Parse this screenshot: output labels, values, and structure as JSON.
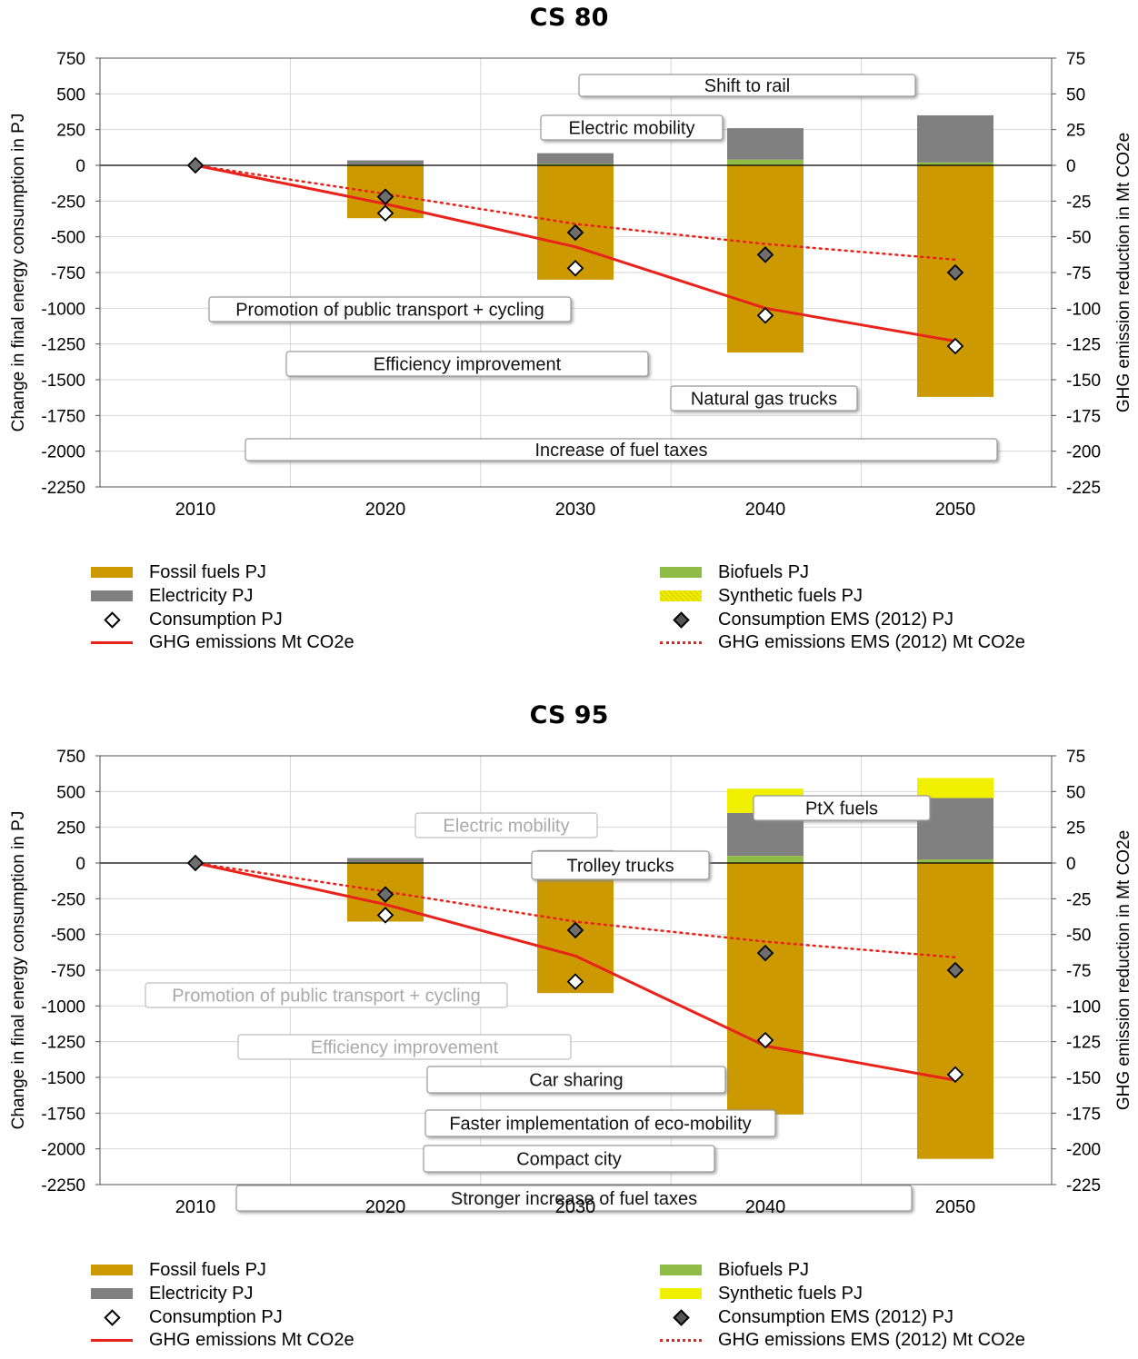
{
  "chart_data": [
    {
      "type": "bar",
      "title": "CS 80",
      "ylabel": "Change in final energy consumption in PJ",
      "y2label": "GHG emission reduction in Mt CO2e",
      "categories": [
        "2010",
        "2020",
        "2030",
        "2040",
        "2050"
      ],
      "ylim": [
        -2250,
        750
      ],
      "yticks": [
        750,
        500,
        250,
        0,
        -250,
        -500,
        -750,
        -1000,
        -1250,
        -1500,
        -1750,
        -2000,
        -2250
      ],
      "y2lim": [
        -225,
        75
      ],
      "y2ticks": [
        75,
        50,
        25,
        0,
        -25,
        -50,
        -75,
        -100,
        -125,
        -150,
        -175,
        -200,
        -225
      ],
      "grid": true,
      "series": [
        {
          "name": "Fossil fuels PJ",
          "kind": "bar",
          "color": "#cc9900",
          "values": [
            0,
            -370,
            -800,
            -1310,
            -1620
          ]
        },
        {
          "name": "Biofuels  PJ",
          "kind": "bar",
          "color": "#8fbc47",
          "values": [
            0,
            5,
            10,
            40,
            20
          ]
        },
        {
          "name": "Electricity  PJ",
          "kind": "bar",
          "color": "#808080",
          "values": [
            0,
            30,
            75,
            220,
            330
          ]
        },
        {
          "name": "Synthetic fuels  PJ",
          "kind": "bar",
          "color": "#f0f000",
          "values": [
            0,
            0,
            0,
            0,
            0
          ]
        },
        {
          "name": "Consumption  PJ",
          "kind": "marker",
          "marker": "open-diamond",
          "values": [
            0,
            -335,
            -720,
            -1050,
            -1265
          ]
        },
        {
          "name": "Consumption EMS (2012)  PJ",
          "kind": "marker",
          "marker": "filled-diamond",
          "values": [
            0,
            -220,
            -470,
            -625,
            -750
          ]
        },
        {
          "name": "GHG emissions Mt CO2e",
          "kind": "line",
          "style": "solid",
          "color": "#e8231c",
          "axis": "right",
          "values": [
            0,
            -27,
            -57,
            -100,
            -123
          ]
        },
        {
          "name": "GHG emissions EMS (2012) Mt CO2e",
          "kind": "line",
          "style": "dotted",
          "color": "#e8231c",
          "axis": "right",
          "values": [
            0,
            -20,
            -41,
            -55,
            -66
          ]
        }
      ],
      "annotations": [
        {
          "text": "Shift to rail",
          "faded": false
        },
        {
          "text": "Electric mobility",
          "faded": false
        },
        {
          "text": "Promotion of public transport + cycling",
          "faded": false
        },
        {
          "text": "Efficiency improvement",
          "faded": false
        },
        {
          "text": "Natural gas trucks",
          "faded": false
        },
        {
          "text": "Increase of fuel taxes",
          "faded": false
        }
      ]
    },
    {
      "type": "bar",
      "title": "CS 95",
      "ylabel": "Change in final energy consumption in PJ",
      "y2label": "GHG emission reduction in Mt CO2e",
      "categories": [
        "2010",
        "2020",
        "2030",
        "2040",
        "2050"
      ],
      "ylim": [
        -2250,
        750
      ],
      "yticks": [
        750,
        500,
        250,
        0,
        -250,
        -500,
        -750,
        -1000,
        -1250,
        -1500,
        -1750,
        -2000,
        -2250
      ],
      "y2lim": [
        -225,
        75
      ],
      "y2ticks": [
        75,
        50,
        25,
        0,
        -25,
        -50,
        -75,
        -100,
        -125,
        -150,
        -175,
        -200,
        -225
      ],
      "grid": true,
      "series": [
        {
          "name": "Fossil fuels PJ",
          "kind": "bar",
          "color": "#cc9900",
          "values": [
            0,
            -410,
            -910,
            -1760,
            -2070
          ]
        },
        {
          "name": "Biofuels  PJ",
          "kind": "bar",
          "color": "#8fbc47",
          "values": [
            0,
            5,
            10,
            50,
            25
          ]
        },
        {
          "name": "Electricity  PJ",
          "kind": "bar",
          "color": "#808080",
          "values": [
            0,
            30,
            80,
            300,
            430
          ]
        },
        {
          "name": "Synthetic fuels  PJ",
          "kind": "bar",
          "color": "#f0f000",
          "values": [
            0,
            0,
            0,
            170,
            140
          ]
        },
        {
          "name": "Consumption  PJ",
          "kind": "marker",
          "marker": "open-diamond",
          "values": [
            0,
            -365,
            -830,
            -1240,
            -1480
          ]
        },
        {
          "name": "Consumption EMS (2012)  PJ",
          "kind": "marker",
          "marker": "filled-diamond",
          "values": [
            0,
            -220,
            -470,
            -630,
            -750
          ]
        },
        {
          "name": "GHG emissions Mt CO2e",
          "kind": "line",
          "style": "solid",
          "color": "#e8231c",
          "axis": "right",
          "values": [
            0,
            -29,
            -65,
            -128,
            -152
          ]
        },
        {
          "name": "GHG emissions EMS (2012) Mt CO2e",
          "kind": "line",
          "style": "dotted",
          "color": "#e8231c",
          "axis": "right",
          "values": [
            0,
            -20,
            -41,
            -55,
            -66
          ]
        }
      ],
      "annotations": [
        {
          "text": "PtX fuels",
          "faded": false
        },
        {
          "text": "Electric mobility",
          "faded": true
        },
        {
          "text": "Trolley trucks",
          "faded": false
        },
        {
          "text": "Promotion of public transport + cycling",
          "faded": true
        },
        {
          "text": "Efficiency improvement",
          "faded": true
        },
        {
          "text": "Car sharing",
          "faded": false
        },
        {
          "text": "Faster implementation of eco-mobility",
          "faded": false
        },
        {
          "text": "Compact city",
          "faded": false
        },
        {
          "text": "Stronger increase of fuel taxes",
          "faded": false
        }
      ]
    }
  ],
  "legend": {
    "fossil": "Fossil fuels PJ",
    "electricity": "Electricity  PJ",
    "consumption": "Consumption  PJ",
    "ghg": "GHG emissions Mt CO2e",
    "biofuels": "Biofuels  PJ",
    "synthetic": "Synthetic fuels  PJ",
    "consumption_ems": "Consumption EMS (2012)  PJ",
    "ghg_ems": "GHG emissions EMS (2012) Mt CO2e"
  }
}
